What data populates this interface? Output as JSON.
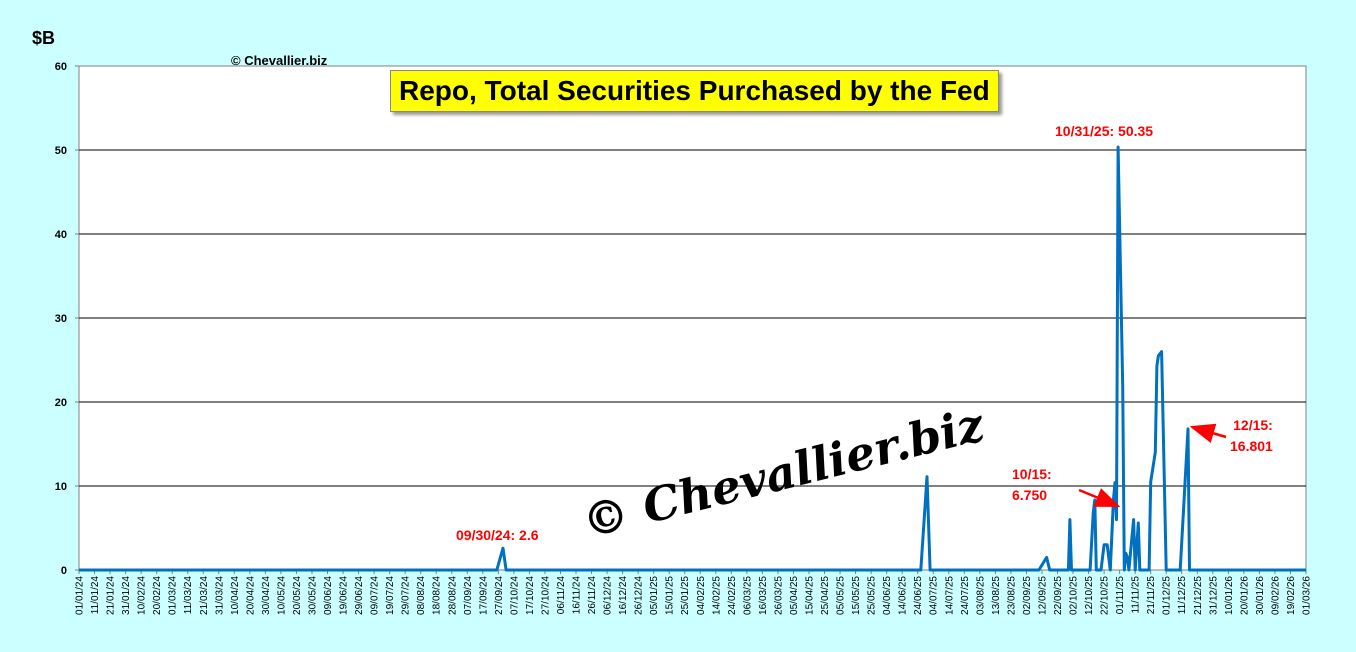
{
  "header": {
    "unit": "$B",
    "copyright": "© Chevallier.biz",
    "watermark": "© Chevallier.biz"
  },
  "chart_data": {
    "type": "line",
    "title": "Repo, Total Securities Purchased by the Fed",
    "xlabel": "",
    "ylabel": "$B",
    "ylim": [
      0,
      60
    ],
    "yticks": [
      0,
      10,
      20,
      30,
      40,
      50,
      60
    ],
    "xlim": [
      "2024-01-01",
      "2026-03-01"
    ],
    "grid": true,
    "series_color": "#0070c0",
    "tick_labels": [
      "01/01/24",
      "11/01/24",
      "21/01/24",
      "31/01/24",
      "10/02/24",
      "20/02/24",
      "01/03/24",
      "11/03/24",
      "21/03/24",
      "31/03/24",
      "10/04/24",
      "20/04/24",
      "30/04/24",
      "10/05/24",
      "20/05/24",
      "30/05/24",
      "09/06/24",
      "19/06/24",
      "29/06/24",
      "09/07/24",
      "19/07/24",
      "29/07/24",
      "08/08/24",
      "18/08/24",
      "28/08/24",
      "07/09/24",
      "17/09/24",
      "27/09/24",
      "07/10/24",
      "17/10/24",
      "27/10/24",
      "06/11/24",
      "16/11/24",
      "26/11/24",
      "06/12/24",
      "16/12/24",
      "26/12/24",
      "05/01/25",
      "15/01/25",
      "25/01/25",
      "04/02/25",
      "14/02/25",
      "24/02/25",
      "06/03/25",
      "16/03/25",
      "26/03/25",
      "05/04/25",
      "15/04/25",
      "25/04/25",
      "05/05/25",
      "15/05/25",
      "25/05/25",
      "04/06/25",
      "14/06/25",
      "24/06/25",
      "04/07/25",
      "14/07/25",
      "24/07/25",
      "03/08/25",
      "13/08/25",
      "23/08/25",
      "02/09/25",
      "12/09/25",
      "22/09/25",
      "02/10/25",
      "12/10/25",
      "22/10/25",
      "01/11/25",
      "11/11/25",
      "21/11/25",
      "01/12/25",
      "11/12/25",
      "21/12/25",
      "31/12/25",
      "10/01/26",
      "20/01/26",
      "30/01/26",
      "09/02/26",
      "19/02/26",
      "01/03/26"
    ],
    "series": [
      {
        "points": [
          [
            "2024-01-01",
            0
          ],
          [
            "2024-09-26",
            0
          ],
          [
            "2024-09-30",
            2.6
          ],
          [
            "2024-10-02",
            0
          ],
          [
            "2025-06-26",
            0
          ],
          [
            "2025-06-30",
            11.1
          ],
          [
            "2025-07-02",
            0
          ],
          [
            "2025-09-10",
            0
          ],
          [
            "2025-09-15",
            1.5
          ],
          [
            "2025-09-17",
            0
          ],
          [
            "2025-09-29",
            0
          ],
          [
            "2025-09-30",
            6.0
          ],
          [
            "2025-10-01",
            0
          ],
          [
            "2025-10-13",
            0
          ],
          [
            "2025-10-15",
            6.75
          ],
          [
            "2025-10-16",
            8.35
          ],
          [
            "2025-10-17",
            0
          ],
          [
            "2025-10-20",
            0
          ],
          [
            "2025-10-22",
            3.0
          ],
          [
            "2025-10-24",
            3.0
          ],
          [
            "2025-10-26",
            0
          ],
          [
            "2025-10-28",
            8.3
          ],
          [
            "2025-10-29",
            10.4
          ],
          [
            "2025-10-30",
            6.0
          ],
          [
            "2025-10-31",
            50.35
          ],
          [
            "2025-11-03",
            22.0
          ],
          [
            "2025-11-04",
            0
          ],
          [
            "2025-11-05",
            2.0
          ],
          [
            "2025-11-06",
            1.5
          ],
          [
            "2025-11-07",
            0
          ],
          [
            "2025-11-10",
            6.0
          ],
          [
            "2025-11-11",
            0
          ],
          [
            "2025-11-13",
            5.6
          ],
          [
            "2025-11-14",
            0
          ],
          [
            "2025-11-20",
            0
          ],
          [
            "2025-11-21",
            10.5
          ],
          [
            "2025-11-24",
            14.0
          ],
          [
            "2025-11-25",
            24.3
          ],
          [
            "2025-11-26",
            25.5
          ],
          [
            "2025-11-28",
            26.0
          ],
          [
            "2025-12-01",
            0
          ],
          [
            "2025-12-10",
            0
          ],
          [
            "2025-12-15",
            16.801
          ],
          [
            "2025-12-16",
            0
          ],
          [
            "2026-03-01",
            0
          ]
        ]
      }
    ],
    "annotations": [
      {
        "text": "09/30/24: 2.6",
        "x": "2024-09-30",
        "y": 2.6
      },
      {
        "line1": "10/15:",
        "line2": "6.750",
        "x": "2025-10-15",
        "y": 6.75
      },
      {
        "text": "10/31/25: 50.35",
        "x": "2025-10-31",
        "y": 50.35
      },
      {
        "line1": "12/15:",
        "line2": "16.801",
        "x": "2025-12-15",
        "y": 16.801
      }
    ]
  }
}
